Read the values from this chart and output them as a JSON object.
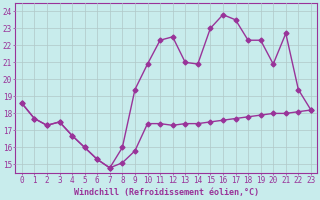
{
  "xlabel": "Windchill (Refroidissement éolien,°C)",
  "bg_color": "#c8ecec",
  "line_color": "#993399",
  "grid_color": "#b0c8c8",
  "xlim": [
    -0.5,
    23.5
  ],
  "ylim": [
    14.5,
    24.5
  ],
  "yticks": [
    15,
    16,
    17,
    18,
    19,
    20,
    21,
    22,
    23,
    24
  ],
  "xticks": [
    0,
    1,
    2,
    3,
    4,
    5,
    6,
    7,
    8,
    9,
    10,
    11,
    12,
    13,
    14,
    15,
    16,
    17,
    18,
    19,
    20,
    21,
    22,
    23
  ],
  "curve1_x": [
    0,
    1,
    2,
    3,
    4,
    5,
    6,
    7,
    8,
    9,
    10,
    11,
    12,
    13,
    14,
    15,
    16,
    17,
    18,
    19,
    20,
    21,
    22,
    23
  ],
  "curve1_y": [
    18.6,
    17.7,
    17.3,
    17.5,
    16.7,
    16.0,
    15.3,
    14.8,
    15.1,
    15.8,
    17.4,
    17.4,
    17.3,
    17.4,
    17.4,
    17.5,
    17.6,
    17.7,
    17.8,
    17.9,
    18.0,
    18.0,
    18.1,
    18.2
  ],
  "curve2_x": [
    0,
    1,
    2,
    3,
    4,
    5,
    6,
    7,
    8,
    9,
    10,
    11,
    12,
    13,
    14,
    15,
    16,
    17,
    18,
    19,
    20,
    21,
    22,
    23
  ],
  "curve2_y": [
    18.6,
    17.7,
    17.3,
    17.5,
    16.7,
    16.0,
    15.3,
    14.8,
    16.0,
    19.4,
    20.9,
    22.3,
    22.5,
    21.0,
    20.9,
    23.0,
    23.8,
    23.5,
    22.3,
    22.3,
    20.9,
    22.7,
    19.4,
    18.2
  ],
  "marker_size": 2.5,
  "line_width": 1.0,
  "tick_fontsize": 5.5,
  "xlabel_fontsize": 6.0
}
